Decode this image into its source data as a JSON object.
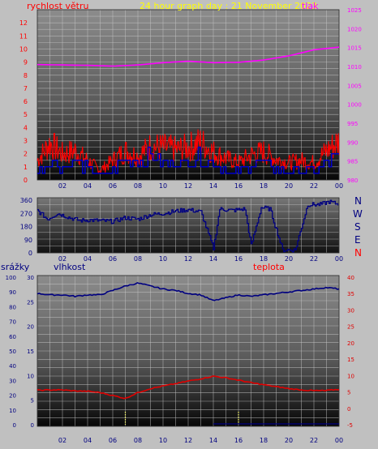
{
  "header": {
    "wind_label": "rychlost větru",
    "title": "24 hour graph day : 21 November 2023",
    "pressure_label": "tlak"
  },
  "bottom_labels": {
    "rain": "srážky",
    "humidity": "vlhkost",
    "temperature": "teplota"
  },
  "colors": {
    "wind": "#ff0000",
    "wind_avg": "#0000cc",
    "pressure": "#ff00ff",
    "direction": "#000080",
    "humidity": "#000080",
    "temperature": "#e00000",
    "rain": "#ffff66",
    "left_axis": "#ff0000",
    "pressure_axis": "#ff00ff",
    "humidity_axis": "#000080"
  },
  "x_ticks": [
    "02",
    "04",
    "06",
    "08",
    "10",
    "12",
    "14",
    "16",
    "18",
    "20",
    "22",
    "00"
  ],
  "compass": [
    "N",
    "W",
    "S",
    "E",
    "N"
  ],
  "chart_data": [
    {
      "type": "line",
      "name": "wind and pressure",
      "y_left_ticks": [
        "0",
        "1",
        "2",
        "3",
        "4",
        "5",
        "6",
        "7",
        "8",
        "9",
        "10",
        "11",
        "12"
      ],
      "ylim_left": [
        0,
        13
      ],
      "y_right_ticks": [
        "980",
        "985",
        "990",
        "995",
        "1000",
        "1005",
        "1010",
        "1015",
        "1020",
        "1025"
      ],
      "ylim_right": [
        980,
        1025
      ],
      "pressure": {
        "x": [
          0,
          2,
          4,
          6,
          8,
          10,
          12,
          14,
          16,
          18,
          20,
          22,
          24
        ],
        "y": [
          1010.5,
          1010.4,
          1010.3,
          1010.1,
          1010.4,
          1011.0,
          1011.4,
          1011.0,
          1011.1,
          1011.7,
          1012.8,
          1014.4,
          1015.1
        ]
      },
      "gust": {
        "x": [
          0,
          1,
          2,
          3,
          4,
          5,
          6,
          7,
          8,
          9,
          10,
          11,
          12,
          13,
          14,
          15,
          16,
          17,
          18,
          19,
          20,
          21,
          22,
          23,
          24
        ],
        "y": [
          1.8,
          3.4,
          2.4,
          2.7,
          1.8,
          0.9,
          1.8,
          2.7,
          2.2,
          3.1,
          3.0,
          2.8,
          3.0,
          3.5,
          2.6,
          2.0,
          1.6,
          2.3,
          2.6,
          1.9,
          1.6,
          1.8,
          1.6,
          2.7,
          3.6
        ]
      },
      "average": {
        "x": [
          0,
          1,
          2,
          3,
          4,
          5,
          6,
          7,
          8,
          9,
          10,
          11,
          12,
          13,
          14,
          15,
          16,
          17,
          18,
          19,
          20,
          21,
          22,
          23,
          24
        ],
        "y": [
          0.6,
          1.7,
          1.0,
          1.4,
          0.9,
          0.3,
          0.8,
          1.7,
          1.4,
          1.9,
          1.3,
          1.2,
          1.6,
          1.8,
          1.4,
          0.7,
          0.6,
          1.3,
          1.5,
          0.8,
          0.6,
          0.9,
          0.7,
          1.4,
          1.9
        ]
      }
    },
    {
      "type": "line",
      "name": "wind direction",
      "y_ticks": [
        "0",
        "90",
        "180",
        "270",
        "360"
      ],
      "ylim": [
        0,
        360
      ],
      "direction": {
        "x": [
          0,
          0.8,
          1.6,
          2.6,
          3.4,
          4.0,
          5.0,
          6.0,
          7.0,
          8.0,
          9.0,
          10.0,
          11.0,
          12.0,
          13.0,
          14.0,
          14.5,
          15.5,
          16.5,
          17.0,
          17.8,
          18.5,
          19.5,
          20.5,
          21.5,
          22.5,
          23.2,
          24
        ],
        "y": [
          290,
          230,
          270,
          240,
          220,
          225,
          220,
          215,
          240,
          230,
          260,
          270,
          285,
          295,
          280,
          30,
          300,
          290,
          300,
          50,
          310,
          300,
          20,
          20,
          330,
          330,
          350,
          330
        ]
      }
    },
    {
      "type": "line",
      "name": "humidity, temperature and rain",
      "y_left_ticks": [
        "0",
        "5",
        "10",
        "15",
        "20",
        "25",
        "30"
      ],
      "ylim_left": [
        0,
        30
      ],
      "y_rain_ticks": [
        "0",
        "10",
        "20",
        "30",
        "40",
        "50",
        "60",
        "70",
        "80",
        "90",
        "100"
      ],
      "ylim_rain": [
        0,
        100
      ],
      "y_right_ticks": [
        "-5",
        "0",
        "5",
        "10",
        "15",
        "20",
        "25",
        "30",
        "35",
        "40"
      ],
      "ylim_right": [
        -5,
        40
      ],
      "humidity": {
        "x": [
          0,
          1,
          2,
          3,
          4,
          5,
          6,
          7,
          8,
          9,
          10,
          11,
          12,
          13,
          14,
          15,
          16,
          17,
          18,
          19,
          20,
          21,
          22,
          23,
          24
        ],
        "y": [
          89,
          88,
          88,
          87,
          88,
          88,
          91,
          94,
          96,
          94,
          92,
          91,
          89,
          88,
          84,
          86,
          88,
          87,
          88,
          89,
          90,
          91,
          92,
          93,
          92
        ]
      },
      "temperature": {
        "x": [
          0,
          1,
          2,
          3,
          4,
          5,
          6,
          7,
          8,
          9,
          10,
          11,
          12,
          13,
          14,
          15,
          16,
          17,
          18,
          19,
          20,
          21,
          22,
          23,
          24
        ],
        "y": [
          5.5,
          5.6,
          5.6,
          5.3,
          5.2,
          4.8,
          3.9,
          3.0,
          4.8,
          6.0,
          6.8,
          7.5,
          8.3,
          9.0,
          9.8,
          9.3,
          8.6,
          7.8,
          7.2,
          6.6,
          6.0,
          5.6,
          5.4,
          5.4,
          5.8
        ]
      },
      "rain": {
        "x": [
          0,
          6.9,
          7.0,
          15.9,
          16.0,
          24
        ],
        "y": [
          0,
          0,
          0.2,
          0,
          0.2,
          0
        ]
      }
    }
  ]
}
